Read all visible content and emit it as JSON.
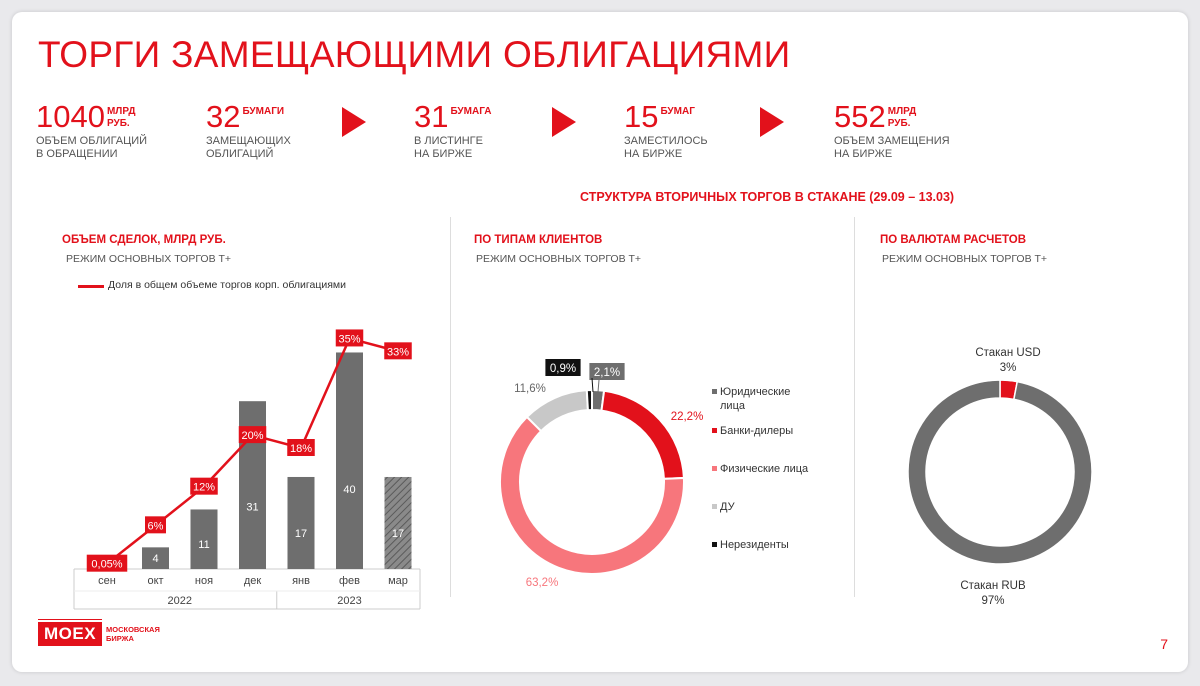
{
  "title": "ТОРГИ ЗАМЕЩАЮЩИМИ ОБЛИГАЦИЯМИ",
  "stats": [
    {
      "num": "1040",
      "unit": "МЛРД\nРУБ.",
      "desc": "ОБЪЕМ ОБЛИГАЦИЙ\nВ ОБРАЩЕНИИ"
    },
    {
      "num": "32",
      "unit": "БУМАГИ",
      "desc": "ЗАМЕЩАЮЩИХ\nОБЛИГАЦИЙ"
    },
    {
      "num": "31",
      "unit": "БУМАГА",
      "desc": "В ЛИСТИНГЕ\nНА БИРЖЕ"
    },
    {
      "num": "15",
      "unit": "БУМАГ",
      "desc": "ЗАМЕСТИЛОСЬ\nНА БИРЖЕ"
    },
    {
      "num": "552",
      "unit": "МЛРД\nРУБ.",
      "desc": "ОБЪЕМ ЗАМЕЩЕНИЯ\nНА БИРЖЕ"
    }
  ],
  "structure_title": "СТРУКТУРА ВТОРИЧНЫХ ТОРГОВ В СТАКАНЕ (29.09 – 13.03)",
  "page_number": "7",
  "logo": {
    "mark": "MOEX",
    "text": "МОСКОВСКАЯ\nБИРЖА"
  },
  "colors": {
    "accent": "#e2111b",
    "bar": "#6e6e6e",
    "pink": "#f7767c",
    "light": "#c8c8c8",
    "black": "#111111"
  },
  "chart_data": [
    {
      "type": "bar",
      "title": "ОБЪЕМ СДЕЛОК, МЛРД РУБ.",
      "subtitle": "РЕЖИМ ОСНОВНЫХ ТОРГОВ Т+",
      "categories": [
        "сен",
        "окт",
        "ноя",
        "дек",
        "янв",
        "фев",
        "мар"
      ],
      "groups": [
        {
          "label": "2022",
          "from": 0,
          "to": 3
        },
        {
          "label": "2023",
          "from": 4,
          "to": 6
        }
      ],
      "values": [
        0,
        4,
        11,
        31,
        17,
        40,
        17
      ],
      "value_labels": [
        "",
        "4",
        "11",
        "31",
        "17",
        "40",
        "17"
      ],
      "hatched_last": true,
      "line_series": {
        "name": "Доля в общем объеме торгов корп. облигациями",
        "values": [
          0.05,
          6,
          12,
          20,
          18,
          35,
          33
        ],
        "labels": [
          "0,05%",
          "6%",
          "12%",
          "20%",
          "18%",
          "35%",
          "33%"
        ]
      },
      "ylim": [
        0,
        45
      ],
      "line_ylim": [
        0,
        36
      ]
    },
    {
      "type": "pie",
      "title": "ПО ТИПАМ КЛИЕНТОВ",
      "subtitle": "РЕЖИМ ОСНОВНЫХ ТОРГОВ Т+",
      "slices": [
        {
          "name": "Юридические\nлица",
          "value": 2.1,
          "label": "2,1%",
          "color": "#6e6e6e"
        },
        {
          "name": "Банки-дилеры",
          "value": 22.2,
          "label": "22,2%",
          "color": "#e2111b"
        },
        {
          "name": "Физические лица",
          "value": 63.2,
          "label": "63,2%",
          "color": "#f7767c"
        },
        {
          "name": "ДУ",
          "value": 11.6,
          "label": "11,6%",
          "color": "#c8c8c8"
        },
        {
          "name": "Нерезиденты",
          "value": 0.9,
          "label": "0,9%",
          "color": "#111111"
        }
      ]
    },
    {
      "type": "pie",
      "title": "ПО ВАЛЮТАМ РАСЧЕТОВ",
      "subtitle": "РЕЖИМ ОСНОВНЫХ ТОРГОВ Т+",
      "slices": [
        {
          "name": "Стакан USD",
          "value": 3,
          "label": "3%",
          "color": "#e2111b"
        },
        {
          "name": "Стакан RUB",
          "value": 97,
          "label": "97%",
          "color": "#6e6e6e"
        }
      ]
    }
  ]
}
